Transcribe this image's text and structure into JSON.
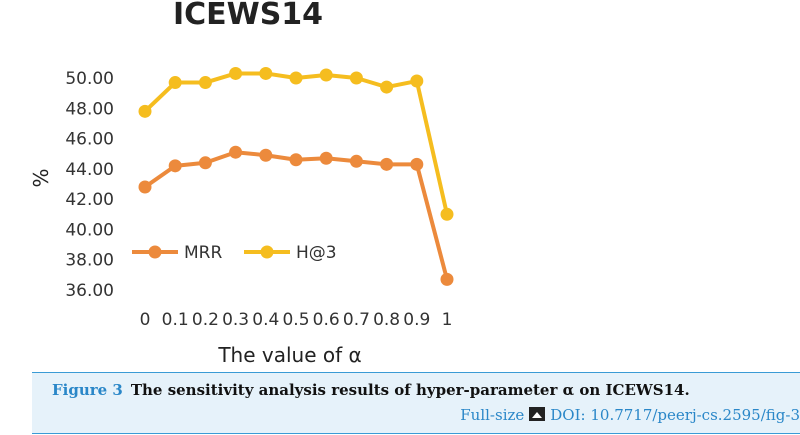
{
  "chart_data": {
    "type": "line",
    "title": "ICEWS14",
    "xlabel": "The value of α",
    "ylabel": "%",
    "categories": [
      "0",
      "0.1",
      "0.2",
      "0.3",
      "0.4",
      "0.5",
      "0.6",
      "0.7",
      "0.8",
      "0.9",
      "1"
    ],
    "ylim": [
      36,
      50
    ],
    "yticks": [
      "36.00",
      "38.00",
      "40.00",
      "42.00",
      "44.00",
      "46.00",
      "48.00",
      "50.00"
    ],
    "grid": false,
    "legend_position": "lower-left inside",
    "series": [
      {
        "name": "MRR",
        "color": "#ec8a3c",
        "values": [
          42.8,
          44.2,
          44.4,
          45.1,
          44.9,
          44.6,
          44.7,
          44.5,
          44.3,
          44.3,
          36.7
        ]
      },
      {
        "name": "H@3",
        "color": "#f5bd1f",
        "values": [
          47.8,
          49.7,
          49.7,
          50.3,
          50.3,
          50.0,
          50.2,
          50.0,
          49.4,
          49.8,
          41.0
        ]
      }
    ]
  },
  "caption": {
    "figure_label": "Figure 3",
    "text": "The sensitivity analysis results of hyper-parameter α on ICEWS14.",
    "fullsize_label": "Full-size",
    "doi_text": "DOI: 10.7717/peerj-cs.2595/fig-3"
  },
  "icons": {
    "image_icon": "image-icon"
  }
}
